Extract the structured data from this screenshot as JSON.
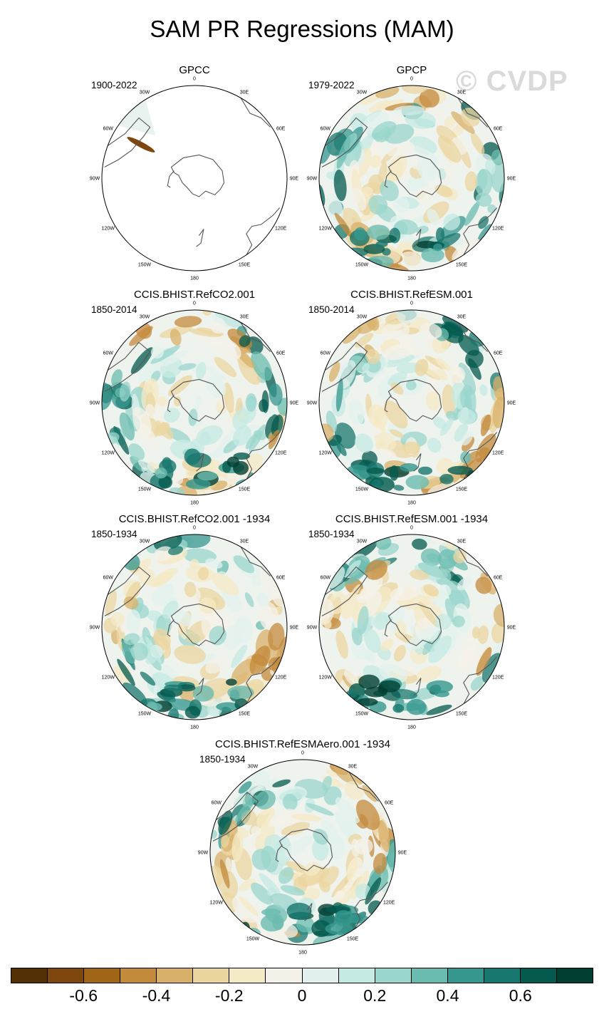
{
  "title": "SAM PR Regressions (MAM)",
  "watermark": "© CVDP",
  "panels": [
    {
      "title": "GPCC",
      "years": "1900-2022",
      "data_coverage": "land-only"
    },
    {
      "title": "GPCP",
      "years": "1979-2022",
      "data_coverage": "global"
    },
    {
      "title": "CCIS.BHIST.RefCO2.001",
      "years": "1850-2014",
      "data_coverage": "global"
    },
    {
      "title": "CCIS.BHIST.RefESM.001",
      "years": "1850-2014",
      "data_coverage": "global"
    },
    {
      "title": "CCIS.BHIST.RefCO2.001 -1934",
      "years": "1850-1934",
      "data_coverage": "global"
    },
    {
      "title": "CCIS.BHIST.RefESM.001 -1934",
      "years": "1850-1934",
      "data_coverage": "global"
    },
    {
      "title": "CCIS.BHIST.RefESMAero.001 -1934",
      "years": "1850-1934",
      "data_coverage": "global"
    }
  ],
  "longitude_labels": [
    "0",
    "30E",
    "60E",
    "90E",
    "120E",
    "150E",
    "180",
    "150W",
    "120W",
    "90W",
    "60W",
    "30W"
  ],
  "colorbar": {
    "colors": [
      "#543005",
      "#7f470e",
      "#a16518",
      "#c38a3c",
      "#d8b06a",
      "#ebd6a0",
      "#f5e9c6",
      "#f4f1e8",
      "#e3f1ee",
      "#c5eae3",
      "#99d6cc",
      "#6bbcb0",
      "#35978f",
      "#18776e",
      "#045a4e",
      "#013f32"
    ],
    "tick_labels": [
      "-0.6",
      "-0.4",
      "-0.2",
      "0",
      "0.2",
      "0.4",
      "0.6"
    ],
    "tick_values": [
      -0.6,
      -0.4,
      -0.2,
      0,
      0.2,
      0.4,
      0.6
    ],
    "min": -0.8,
    "max": 0.8
  }
}
